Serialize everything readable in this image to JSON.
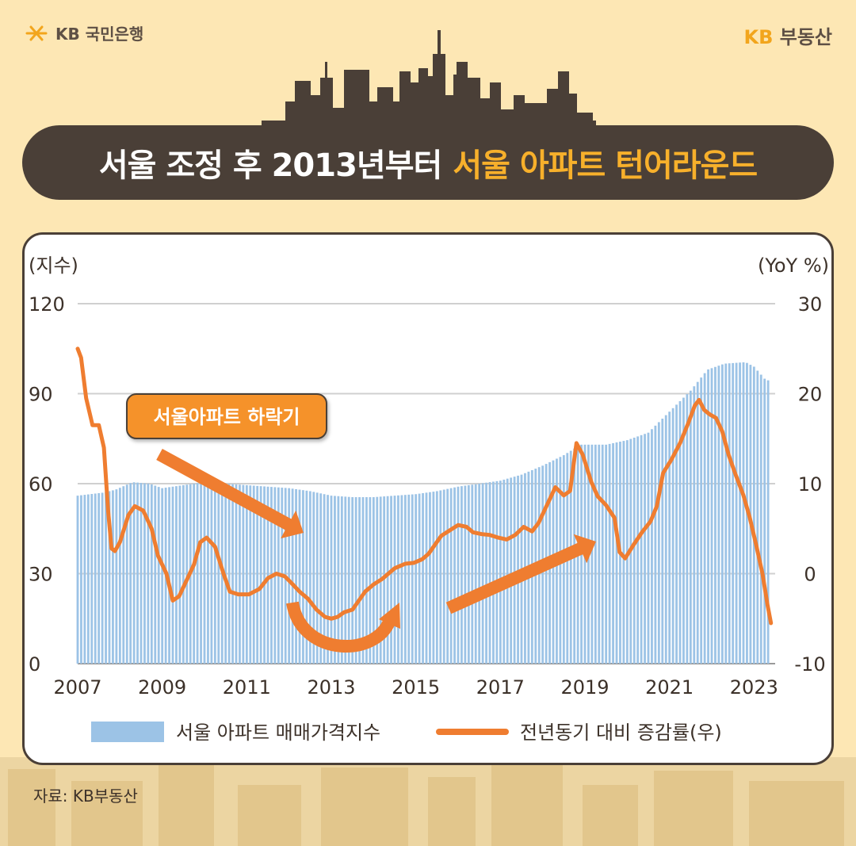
{
  "header": {
    "bank_logo_text": "KB 국민은행",
    "brand_kb": "KB",
    "brand_rest": "부동산"
  },
  "title": {
    "part1": "서울 조정 후 2013년부터",
    "part2": "서울 아파트 턴어라운드"
  },
  "source": "자료: KB부동산",
  "colors": {
    "background": "#fde7b4",
    "banner": "#4a3f37",
    "accent": "#f7b02b",
    "bars": "#9cc3e6",
    "line": "#ef7d30",
    "callout_fill": "#f5922a"
  },
  "chart_data": {
    "type": "bar+line",
    "left_axis_label": "(지수)",
    "right_axis_label": "(YoY %)",
    "left_ticks": [
      "0",
      "30",
      "60",
      "90",
      "120"
    ],
    "right_ticks": [
      "-10",
      "0",
      "10",
      "20",
      "30"
    ],
    "x_ticks": [
      "2007",
      "2009",
      "2011",
      "2013",
      "2015",
      "2017",
      "2019",
      "2021",
      "2023"
    ],
    "ylim_left": [
      0,
      120
    ],
    "ylim_right": [
      -10,
      30
    ],
    "x_range": [
      2007.0,
      2023.5
    ],
    "grid": "horizontal",
    "legend_position": "bottom",
    "callout_text": "서울아파트 하락기",
    "series": [
      {
        "name": "서울 아파트 매매가격지수",
        "axis": "left",
        "kind": "bar",
        "points": [
          [
            2007.0,
            56
          ],
          [
            2007.6,
            57
          ],
          [
            2007.9,
            58
          ],
          [
            2008.3,
            60.5
          ],
          [
            2008.7,
            60
          ],
          [
            2009.0,
            58.5
          ],
          [
            2009.5,
            59.5
          ],
          [
            2010.0,
            60.5
          ],
          [
            2010.5,
            60
          ],
          [
            2011.0,
            59.5
          ],
          [
            2011.5,
            59
          ],
          [
            2012.0,
            58.5
          ],
          [
            2012.5,
            57.5
          ],
          [
            2013.0,
            56
          ],
          [
            2013.5,
            55.5
          ],
          [
            2014.0,
            55.5
          ],
          [
            2014.5,
            56
          ],
          [
            2015.0,
            56.5
          ],
          [
            2015.5,
            57.5
          ],
          [
            2016.0,
            59
          ],
          [
            2016.5,
            60
          ],
          [
            2017.0,
            61
          ],
          [
            2017.5,
            63
          ],
          [
            2018.0,
            66
          ],
          [
            2018.5,
            69.5
          ],
          [
            2018.9,
            73
          ],
          [
            2019.5,
            73
          ],
          [
            2020.0,
            74.5
          ],
          [
            2020.5,
            77
          ],
          [
            2021.0,
            84
          ],
          [
            2021.5,
            91
          ],
          [
            2021.9,
            98
          ],
          [
            2022.3,
            100
          ],
          [
            2022.8,
            100.5
          ],
          [
            2023.0,
            99
          ],
          [
            2023.25,
            95
          ],
          [
            2023.4,
            94
          ]
        ]
      },
      {
        "name": "전년동기 대비 증감률(우)",
        "axis": "right",
        "kind": "line",
        "points": [
          [
            2007.0,
            25
          ],
          [
            2007.08,
            24
          ],
          [
            2007.2,
            19.5
          ],
          [
            2007.35,
            16.5
          ],
          [
            2007.5,
            16.5
          ],
          [
            2007.62,
            14
          ],
          [
            2007.72,
            7
          ],
          [
            2007.8,
            2.8
          ],
          [
            2007.88,
            2.5
          ],
          [
            2008.0,
            3.5
          ],
          [
            2008.2,
            6.5
          ],
          [
            2008.35,
            7.5
          ],
          [
            2008.55,
            7
          ],
          [
            2008.75,
            5
          ],
          [
            2008.9,
            2
          ],
          [
            2009.1,
            0
          ],
          [
            2009.25,
            -3
          ],
          [
            2009.4,
            -2.5
          ],
          [
            2009.55,
            -1
          ],
          [
            2009.75,
            1
          ],
          [
            2009.9,
            3.5
          ],
          [
            2010.05,
            4
          ],
          [
            2010.25,
            3
          ],
          [
            2010.45,
            0
          ],
          [
            2010.6,
            -2
          ],
          [
            2010.8,
            -2.3
          ],
          [
            2011.05,
            -2.3
          ],
          [
            2011.3,
            -1.7
          ],
          [
            2011.5,
            -0.5
          ],
          [
            2011.7,
            0
          ],
          [
            2011.9,
            -0.3
          ],
          [
            2012.05,
            -1
          ],
          [
            2012.25,
            -2
          ],
          [
            2012.45,
            -2.8
          ],
          [
            2012.65,
            -4
          ],
          [
            2012.85,
            -4.8
          ],
          [
            2013.0,
            -5
          ],
          [
            2013.15,
            -4.8
          ],
          [
            2013.3,
            -4.3
          ],
          [
            2013.5,
            -4
          ],
          [
            2013.65,
            -3
          ],
          [
            2013.8,
            -2
          ],
          [
            2014.0,
            -1.2
          ],
          [
            2014.2,
            -0.6
          ],
          [
            2014.5,
            0.6
          ],
          [
            2014.75,
            1.1
          ],
          [
            2014.95,
            1.2
          ],
          [
            2015.15,
            1.6
          ],
          [
            2015.3,
            2.2
          ],
          [
            2015.45,
            3.2
          ],
          [
            2015.6,
            4.2
          ],
          [
            2015.8,
            4.8
          ],
          [
            2016.0,
            5.4
          ],
          [
            2016.2,
            5.2
          ],
          [
            2016.35,
            4.6
          ],
          [
            2016.55,
            4.4
          ],
          [
            2016.75,
            4.3
          ],
          [
            2016.95,
            4.0
          ],
          [
            2017.15,
            3.8
          ],
          [
            2017.35,
            4.3
          ],
          [
            2017.55,
            5.2
          ],
          [
            2017.75,
            4.7
          ],
          [
            2017.9,
            5.6
          ],
          [
            2018.1,
            7.6
          ],
          [
            2018.3,
            9.6
          ],
          [
            2018.5,
            8.7
          ],
          [
            2018.65,
            9.2
          ],
          [
            2018.8,
            14.5
          ],
          [
            2018.95,
            13.2
          ],
          [
            2019.15,
            10.2
          ],
          [
            2019.3,
            8.6
          ],
          [
            2019.5,
            7.6
          ],
          [
            2019.7,
            6.2
          ],
          [
            2019.82,
            2.4
          ],
          [
            2019.95,
            1.7
          ],
          [
            2020.15,
            3.2
          ],
          [
            2020.35,
            4.6
          ],
          [
            2020.55,
            5.8
          ],
          [
            2020.7,
            7.5
          ],
          [
            2020.85,
            11.2
          ],
          [
            2021.05,
            12.7
          ],
          [
            2021.25,
            14.5
          ],
          [
            2021.45,
            16.8
          ],
          [
            2021.6,
            18.7
          ],
          [
            2021.7,
            19.3
          ],
          [
            2021.82,
            18.2
          ],
          [
            2021.95,
            17.7
          ],
          [
            2022.1,
            17.3
          ],
          [
            2022.25,
            15.8
          ],
          [
            2022.4,
            13.2
          ],
          [
            2022.55,
            11.2
          ],
          [
            2022.75,
            8.7
          ],
          [
            2022.9,
            6.2
          ],
          [
            2023.05,
            3.2
          ],
          [
            2023.2,
            0
          ],
          [
            2023.32,
            -3.5
          ],
          [
            2023.4,
            -5.5
          ]
        ]
      }
    ]
  }
}
